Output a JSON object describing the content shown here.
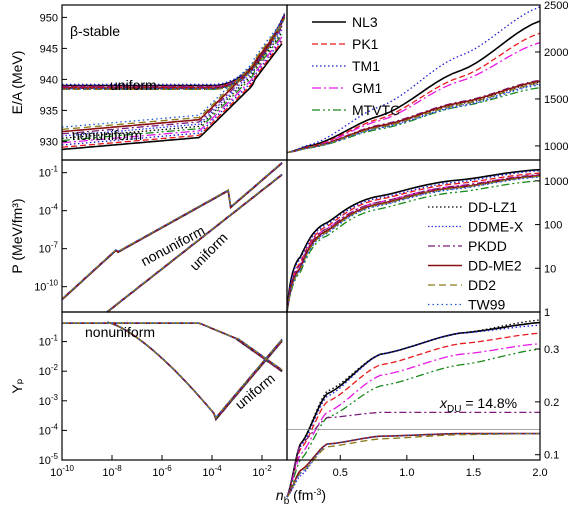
{
  "chart_data": {
    "type": "line",
    "xlabel": "n_b (fm^-3)",
    "x_label_parts": {
      "main": "n",
      "sub": "b",
      "unit_pre": " (fm",
      "unit_sup": "-3",
      "unit_post": ")"
    },
    "panels_annotation": "β-stable",
    "left_x": {
      "scale": "log",
      "range": [
        1e-10,
        0.1
      ],
      "ticks": [
        "-10",
        "-8",
        "-6",
        "-4",
        "-2"
      ]
    },
    "right_x": {
      "scale": "linear",
      "range": [
        0.1,
        2.0
      ],
      "ticks": [
        "0.5",
        "1.0",
        "1.5",
        "2.0"
      ]
    },
    "rows": [
      {
        "ylabel": "E/A (MeV)",
        "left_scale": "linear",
        "left_range": [
          927,
          952
        ],
        "left_ticks": [
          "930",
          "935",
          "940",
          "945",
          "950"
        ],
        "right_scale": "linear",
        "right_range": [
          850,
          2500
        ],
        "right_ticks": [
          "1000",
          "1500",
          "2000",
          "2500"
        ],
        "annotations": [
          "uniform",
          "nonuniform"
        ]
      },
      {
        "ylabel": "P (MeV/fm^3)",
        "left_scale": "log",
        "left_range": [
          1e-12,
          1
        ],
        "left_ticks": [
          "-10",
          "-7",
          "-4",
          "-1"
        ],
        "right_scale": "log",
        "right_range": [
          1,
          3000
        ],
        "right_ticks": [
          "1",
          "10",
          "100",
          "1000"
        ],
        "annotations": [
          "nonuniform",
          "uniform"
        ]
      },
      {
        "ylabel": "Y_p",
        "left_scale": "log",
        "left_range": [
          1e-05,
          1
        ],
        "left_ticks": [
          "-5",
          "-4",
          "-3",
          "-2",
          "-1"
        ],
        "right_scale": "linear",
        "right_range": [
          0.09,
          0.37
        ],
        "right_ticks": [
          "0.1",
          "0.2",
          "0.3"
        ],
        "annotations": [
          "nonuniform",
          "uniform"
        ],
        "dU_label": "x_DU = 14.8%"
      }
    ],
    "series": [
      {
        "name": "NL3",
        "color": "#000000",
        "dash": "",
        "width": 1.6,
        "ea": {
          "left_uni": 939.0,
          "right": [
            [
              0.1,
              930
            ],
            [
              0.3,
              1010
            ],
            [
              0.8,
              1320
            ],
            [
              1.4,
              1800
            ],
            [
              2.0,
              2330
            ]
          ]
        },
        "p": {
          "right": [
            [
              0.1,
              1
            ],
            [
              0.2,
              18
            ],
            [
              0.4,
              110
            ],
            [
              0.8,
              450
            ],
            [
              1.4,
              1050
            ],
            [
              2.0,
              1800
            ]
          ]
        },
        "yp": {
          "right": [
            [
              0.1,
              0.02
            ],
            [
              0.2,
              0.12
            ],
            [
              0.4,
              0.215
            ],
            [
              0.8,
              0.29
            ],
            [
              1.4,
              0.33
            ],
            [
              2.0,
              0.35
            ]
          ]
        }
      },
      {
        "name": "PK1",
        "color": "#e8191c",
        "dash": "6,3",
        "width": 1.3,
        "ea": {
          "left_uni": 938.8,
          "right": [
            [
              0.1,
              930
            ],
            [
              0.3,
              1000
            ],
            [
              0.8,
              1290
            ],
            [
              1.4,
              1730
            ],
            [
              2.0,
              2200
            ]
          ]
        },
        "p": {
          "right": [
            [
              0.1,
              1
            ],
            [
              0.2,
              13
            ],
            [
              0.4,
              90
            ],
            [
              0.8,
              380
            ],
            [
              1.4,
              880
            ],
            [
              2.0,
              1500
            ]
          ]
        },
        "yp": {
          "right": [
            [
              0.1,
              0.02
            ],
            [
              0.2,
              0.11
            ],
            [
              0.4,
              0.2
            ],
            [
              0.8,
              0.27
            ],
            [
              1.4,
              0.31
            ],
            [
              2.0,
              0.33
            ]
          ]
        }
      },
      {
        "name": "TM1",
        "color": "#1a1ad6",
        "dash": "1.5,2.5",
        "width": 1.3,
        "ea": {
          "left_uni": 939.2,
          "right": [
            [
              0.1,
              930
            ],
            [
              0.3,
              1025
            ],
            [
              0.8,
              1420
            ],
            [
              1.4,
              1960
            ],
            [
              2.0,
              2480
            ]
          ]
        },
        "p": {
          "right": [
            [
              0.1,
              1
            ],
            [
              0.2,
              16
            ],
            [
              0.4,
              100
            ],
            [
              0.8,
              410
            ],
            [
              1.4,
              950
            ],
            [
              2.0,
              1700
            ]
          ]
        },
        "yp": {
          "right": [
            [
              0.1,
              0.02
            ],
            [
              0.2,
              0.115
            ],
            [
              0.4,
              0.21
            ],
            [
              0.8,
              0.29
            ],
            [
              1.4,
              0.33
            ],
            [
              2.0,
              0.345
            ]
          ]
        }
      },
      {
        "name": "GM1",
        "color": "#e619e6",
        "dash": "9,3,2,3",
        "width": 1.3,
        "ea": {
          "left_uni": 938.7,
          "right": [
            [
              0.1,
              930
            ],
            [
              0.3,
              995
            ],
            [
              0.8,
              1270
            ],
            [
              1.4,
              1690
            ],
            [
              2.0,
              2100
            ]
          ]
        },
        "p": {
          "right": [
            [
              0.1,
              1
            ],
            [
              0.2,
              11
            ],
            [
              0.4,
              80
            ],
            [
              0.8,
              330
            ],
            [
              1.4,
              780
            ],
            [
              2.0,
              1350
            ]
          ]
        },
        "yp": {
          "right": [
            [
              0.1,
              0.02
            ],
            [
              0.2,
              0.1
            ],
            [
              0.4,
              0.18
            ],
            [
              0.8,
              0.25
            ],
            [
              1.4,
              0.29
            ],
            [
              2.0,
              0.31
            ]
          ]
        }
      },
      {
        "name": "MTVTC",
        "color": "#1a8a1a",
        "dash": "8,3,2,3,2,3",
        "width": 1.3,
        "ea": {
          "left_uni": 938.4,
          "right": [
            [
              0.1,
              930
            ],
            [
              0.3,
              985
            ],
            [
              0.8,
              1180
            ],
            [
              1.4,
              1420
            ],
            [
              2.0,
              1620
            ]
          ]
        },
        "p": {
          "right": [
            [
              0.1,
              1
            ],
            [
              0.2,
              8
            ],
            [
              0.4,
              55
            ],
            [
              0.8,
              230
            ],
            [
              1.4,
              560
            ],
            [
              2.0,
              1000
            ]
          ]
        },
        "yp": {
          "right": [
            [
              0.1,
              0.02
            ],
            [
              0.2,
              0.09
            ],
            [
              0.4,
              0.17
            ],
            [
              0.8,
              0.23
            ],
            [
              1.4,
              0.27
            ],
            [
              2.0,
              0.3
            ]
          ]
        }
      },
      {
        "name": "DD-LZ1",
        "color": "#000000",
        "dash": "1.5,2.5",
        "width": 1.3,
        "ea": {
          "left_uni": 938.6,
          "right": [
            [
              0.1,
              930
            ],
            [
              0.3,
              990
            ],
            [
              0.8,
              1210
            ],
            [
              1.4,
              1450
            ],
            [
              2.0,
              1680
            ]
          ]
        },
        "p": {
          "right": [
            [
              0.1,
              1
            ],
            [
              0.2,
              10
            ],
            [
              0.4,
              70
            ],
            [
              0.8,
              300
            ],
            [
              1.4,
              720
            ],
            [
              2.0,
              1300
            ]
          ]
        },
        "yp": {
          "right": [
            [
              0.1,
              0.02
            ],
            [
              0.2,
              0.12
            ],
            [
              0.4,
              0.22
            ],
            [
              0.8,
              0.29
            ],
            [
              1.4,
              0.33
            ],
            [
              2.0,
              0.355
            ]
          ]
        }
      },
      {
        "name": "DDME-X",
        "color": "#3333ee",
        "dash": "1.5,2",
        "width": 1.3,
        "ea": {
          "left_uni": 938.5,
          "right": [
            [
              0.1,
              930
            ],
            [
              0.3,
              988
            ],
            [
              0.8,
              1195
            ],
            [
              1.4,
              1430
            ],
            [
              2.0,
              1660
            ]
          ]
        },
        "p": {
          "right": [
            [
              0.1,
              1
            ],
            [
              0.2,
              9
            ],
            [
              0.4,
              65
            ],
            [
              0.8,
              280
            ],
            [
              1.4,
              680
            ],
            [
              2.0,
              1250
            ]
          ]
        },
        "yp": {
          "right": [
            [
              0.1,
              0.02
            ],
            [
              0.2,
              0.06
            ],
            [
              0.4,
              0.12
            ],
            [
              0.8,
              0.135
            ],
            [
              1.4,
              0.14
            ],
            [
              2.0,
              0.14
            ]
          ]
        }
      },
      {
        "name": "PKDD",
        "color": "#7a1a7a",
        "dash": "7,3,2,3",
        "width": 1.3,
        "ea": {
          "left_uni": 938.9,
          "right": [
            [
              0.1,
              930
            ],
            [
              0.3,
              995
            ],
            [
              0.8,
              1225
            ],
            [
              1.4,
              1470
            ],
            [
              2.0,
              1700
            ]
          ]
        },
        "p": {
          "right": [
            [
              0.1,
              1
            ],
            [
              0.2,
              12
            ],
            [
              0.4,
              80
            ],
            [
              0.8,
              330
            ],
            [
              1.4,
              770
            ],
            [
              2.0,
              1380
            ]
          ]
        },
        "yp": {
          "right": [
            [
              0.1,
              0.02
            ],
            [
              0.2,
              0.12
            ],
            [
              0.4,
              0.17
            ],
            [
              0.8,
              0.18
            ],
            [
              1.4,
              0.18
            ],
            [
              2.0,
              0.18
            ]
          ]
        }
      },
      {
        "name": "DD-ME2",
        "color": "#8a1111",
        "dash": "",
        "width": 1.6,
        "ea": {
          "left_uni": 938.6,
          "right": [
            [
              0.1,
              930
            ],
            [
              0.3,
              992
            ],
            [
              0.8,
              1215
            ],
            [
              1.4,
              1460
            ],
            [
              2.0,
              1690
            ]
          ]
        },
        "p": {
          "right": [
            [
              0.1,
              1
            ],
            [
              0.2,
              10
            ],
            [
              0.4,
              72
            ],
            [
              0.8,
              300
            ],
            [
              1.4,
              720
            ],
            [
              2.0,
              1300
            ]
          ]
        },
        "yp": {
          "right": [
            [
              0.1,
              0.02
            ],
            [
              0.2,
              0.07
            ],
            [
              0.4,
              0.12
            ],
            [
              0.8,
              0.135
            ],
            [
              1.4,
              0.14
            ],
            [
              2.0,
              0.14
            ]
          ]
        }
      },
      {
        "name": "DD2",
        "color": "#8a7a1a",
        "dash": "7,4",
        "width": 1.3,
        "ea": {
          "left_uni": 938.4,
          "right": [
            [
              0.1,
              930
            ],
            [
              0.3,
              990
            ],
            [
              0.8,
              1200
            ],
            [
              1.4,
              1440
            ],
            [
              2.0,
              1670
            ]
          ]
        },
        "p": {
          "right": [
            [
              0.1,
              1
            ],
            [
              0.2,
              9
            ],
            [
              0.4,
              66
            ],
            [
              0.8,
              285
            ],
            [
              1.4,
              700
            ],
            [
              2.0,
              1270
            ]
          ]
        },
        "yp": {
          "right": [
            [
              0.1,
              0.02
            ],
            [
              0.2,
              0.065
            ],
            [
              0.4,
              0.115
            ],
            [
              0.8,
              0.13
            ],
            [
              1.4,
              0.138
            ],
            [
              2.0,
              0.14
            ]
          ]
        }
      },
      {
        "name": "TW99",
        "color": "#1a5ad6",
        "dash": "1.5,3",
        "width": 1.3,
        "ea": {
          "left_uni": 938.5,
          "right": [
            [
              0.1,
              930
            ],
            [
              0.3,
              988
            ],
            [
              0.8,
              1190
            ],
            [
              1.4,
              1420
            ],
            [
              2.0,
              1650
            ]
          ]
        },
        "p": {
          "right": [
            [
              0.1,
              1
            ],
            [
              0.2,
              9
            ],
            [
              0.4,
              62
            ],
            [
              0.8,
              270
            ],
            [
              1.4,
              660
            ],
            [
              2.0,
              1220
            ]
          ]
        },
        "yp": {
          "right": [
            [
              0.1,
              0.02
            ],
            [
              0.2,
              0.065
            ],
            [
              0.4,
              0.12
            ],
            [
              0.8,
              0.135
            ],
            [
              1.4,
              0.14
            ],
            [
              2.0,
              0.14
            ]
          ]
        }
      }
    ],
    "legend_top": [
      "NL3",
      "PK1",
      "TM1",
      "GM1",
      "MTVTC"
    ],
    "legend_mid": [
      "DD-LZ1",
      "DDME-X",
      "PKDD",
      "DD-ME2",
      "DD2",
      "TW99"
    ]
  }
}
